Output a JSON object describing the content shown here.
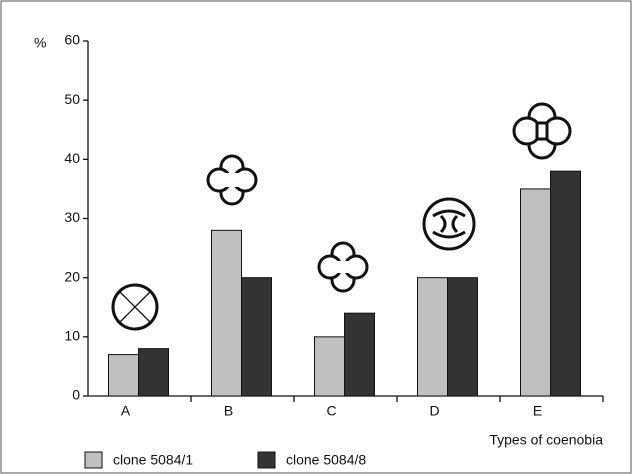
{
  "chart_data": {
    "type": "bar",
    "y_unit": "%",
    "x_label": "Types of coenobia",
    "categories": [
      "A",
      "B",
      "C",
      "D",
      "E"
    ],
    "series": [
      {
        "name": "clone 5084/1",
        "color": "#c0c0c0",
        "values": [
          7,
          28,
          10,
          20,
          35
        ]
      },
      {
        "name": "clone 5084/8",
        "color": "#333333",
        "values": [
          8,
          20,
          14,
          20,
          38
        ]
      }
    ],
    "ylim": [
      0,
      60
    ],
    "yticks": [
      0,
      10,
      20,
      30,
      40,
      50,
      60
    ],
    "grid": false
  }
}
